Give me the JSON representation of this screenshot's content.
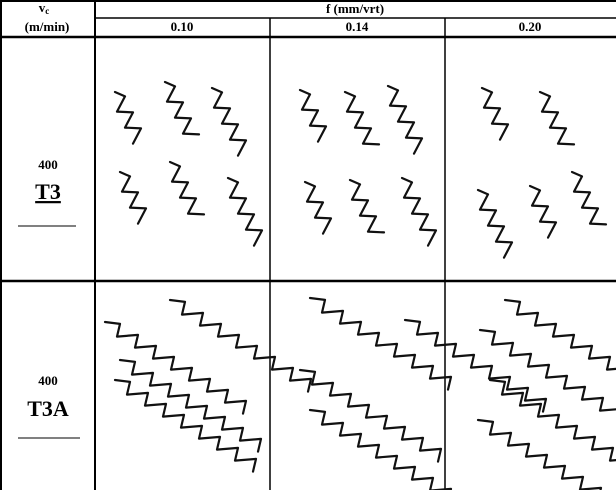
{
  "header": {
    "speed_symbol": "v",
    "speed_subscript": "c",
    "speed_unit": "(m/min)",
    "feed_title": "f (mm/vrt)",
    "feeds": [
      "0.10",
      "0.14",
      "0.20"
    ]
  },
  "rows": [
    {
      "speed": "400",
      "tool": "T3"
    },
    {
      "speed": "400",
      "tool": "T3A"
    }
  ]
}
